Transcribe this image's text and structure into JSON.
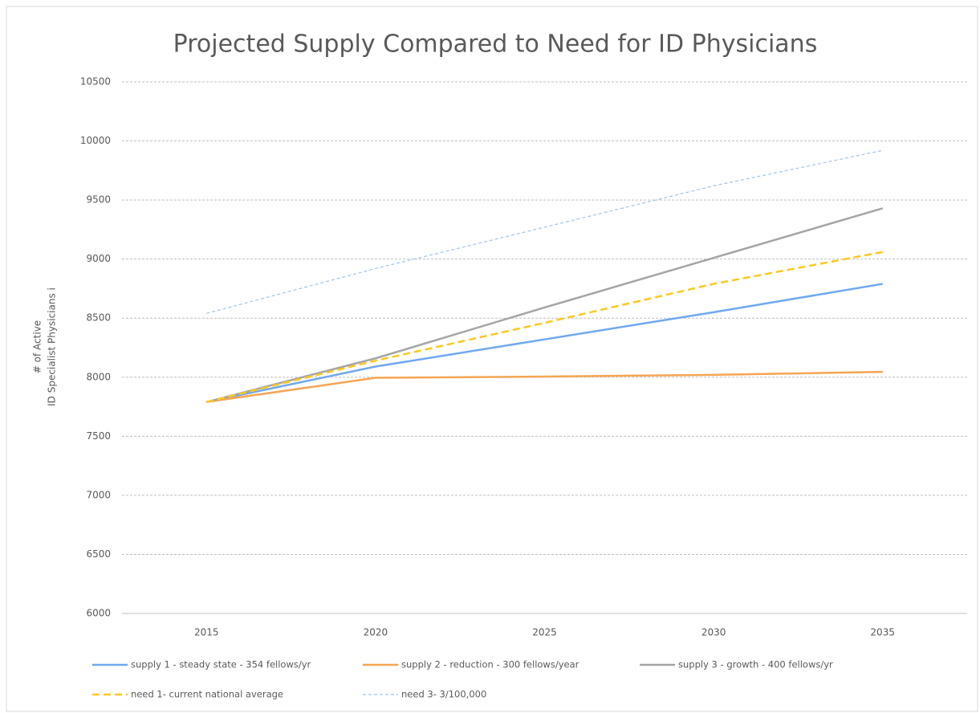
{
  "chart_data": {
    "type": "line",
    "title": "Projected Supply Compared to Need for ID Physicians",
    "y_label": [
      "# of Active",
      "ID Specialist Physicians i"
    ],
    "categories": [
      "2015",
      "2020",
      "2025",
      "2030",
      "2035"
    ],
    "series": [
      {
        "name": "supply 1 - steady state - 354 fellows/yr",
        "color": "#6fa8f0",
        "dash": "solid",
        "values": [
          7790,
          8090,
          8320,
          8550,
          8790
        ]
      },
      {
        "name": "supply 2 - reduction  - 300 fellows/year",
        "color": "#f5a553",
        "dash": "solid",
        "values": [
          7790,
          7995,
          8005,
          8020,
          8045
        ]
      },
      {
        "name": "supply 3 - growth - 400 fellows/yr",
        "color": "#a5a5a5",
        "dash": "solid",
        "values": [
          7790,
          8160,
          8590,
          9010,
          9430
        ]
      },
      {
        "name": "need 1- current national average",
        "color": "#fdc81e",
        "dash": "long",
        "values": [
          7790,
          8140,
          8460,
          8790,
          9060
        ]
      },
      {
        "name": "need 3- 3/100,000",
        "color": "#9dc3f0",
        "dash": "short",
        "values": [
          8540,
          8920,
          9270,
          9620,
          9920
        ]
      }
    ],
    "ylim": [
      6000,
      10500
    ],
    "yticks": [
      6000,
      6500,
      7000,
      7500,
      8000,
      8500,
      9000,
      9500,
      10000,
      10500
    ],
    "grid": true,
    "legend": "bottom"
  }
}
